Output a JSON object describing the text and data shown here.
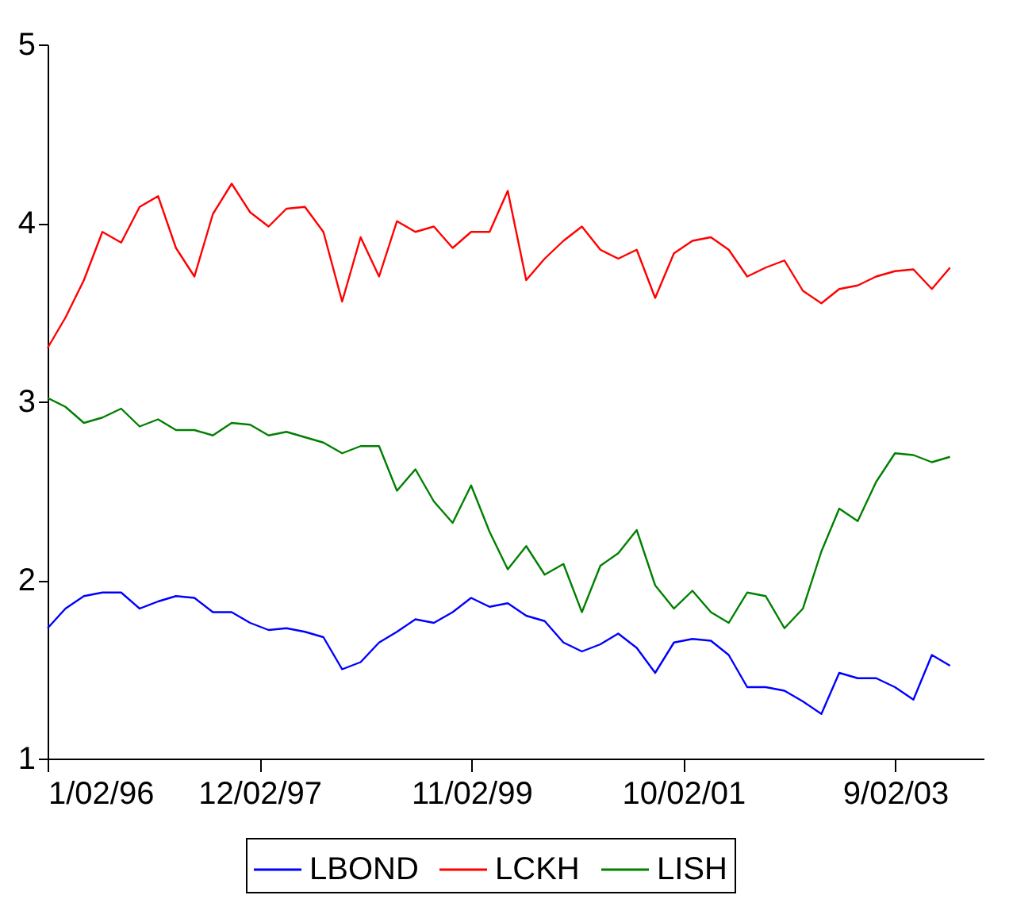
{
  "chart_data": {
    "type": "line",
    "x": [
      "1996-01-02",
      "1996-03",
      "1996-05",
      "1996-07",
      "1996-09",
      "1996-11",
      "1997-01",
      "1997-03",
      "1997-05",
      "1997-07",
      "1997-09",
      "1997-11",
      "1998-01",
      "1998-03",
      "1998-05",
      "1998-07",
      "1998-09",
      "1998-11",
      "1999-01",
      "1999-03",
      "1999-05",
      "1999-07",
      "1999-09",
      "1999-11",
      "2000-01",
      "2000-03",
      "2000-05",
      "2000-07",
      "2000-09",
      "2000-11",
      "2001-01",
      "2001-03",
      "2001-05",
      "2001-07",
      "2001-09",
      "2001-11",
      "2002-01",
      "2002-03",
      "2002-05",
      "2002-07",
      "2002-09",
      "2002-11",
      "2003-01",
      "2003-03",
      "2003-05",
      "2003-07",
      "2003-09",
      "2003-11",
      "2004-01",
      "2004-03"
    ],
    "series": [
      {
        "name": "LBOND",
        "color": "#0000ff",
        "values": [
          1.73,
          1.84,
          1.91,
          1.93,
          1.93,
          1.84,
          1.88,
          1.91,
          1.9,
          1.82,
          1.82,
          1.76,
          1.72,
          1.73,
          1.71,
          1.68,
          1.5,
          1.54,
          1.65,
          1.71,
          1.78,
          1.76,
          1.82,
          1.9,
          1.85,
          1.87,
          1.8,
          1.77,
          1.65,
          1.6,
          1.64,
          1.7,
          1.62,
          1.48,
          1.65,
          1.67,
          1.66,
          1.58,
          1.4,
          1.4,
          1.38,
          1.32,
          1.25,
          1.48,
          1.45,
          1.45,
          1.4,
          1.33,
          1.58,
          1.52
        ]
      },
      {
        "name": "LCKH",
        "color": "#ff0000",
        "values": [
          3.3,
          3.47,
          3.68,
          3.95,
          3.89,
          4.09,
          4.15,
          3.86,
          3.7,
          4.05,
          4.22,
          4.06,
          3.98,
          4.08,
          4.09,
          3.95,
          3.56,
          3.92,
          3.7,
          4.01,
          3.95,
          3.98,
          3.86,
          3.95,
          3.95,
          4.18,
          3.68,
          3.8,
          3.9,
          3.98,
          3.85,
          3.8,
          3.85,
          3.58,
          3.83,
          3.9,
          3.92,
          3.85,
          3.7,
          3.75,
          3.79,
          3.62,
          3.55,
          3.63,
          3.65,
          3.7,
          3.73,
          3.74,
          3.63,
          3.75
        ]
      },
      {
        "name": "LISH",
        "color": "#008000",
        "values": [
          3.02,
          2.97,
          2.88,
          2.91,
          2.96,
          2.86,
          2.9,
          2.84,
          2.84,
          2.81,
          2.88,
          2.87,
          2.81,
          2.83,
          2.8,
          2.77,
          2.71,
          2.75,
          2.75,
          2.5,
          2.62,
          2.44,
          2.32,
          2.53,
          2.27,
          2.06,
          2.19,
          2.03,
          2.09,
          1.82,
          2.08,
          2.15,
          2.28,
          1.97,
          1.84,
          1.94,
          1.82,
          1.76,
          1.93,
          1.91,
          1.73,
          1.84,
          2.16,
          2.4,
          2.33,
          2.55,
          2.71,
          2.7,
          2.66,
          2.69
        ]
      }
    ],
    "xlim": [
      "1996-01-02",
      "2004-06-20"
    ],
    "xticks": [
      {
        "value": "1996-01-02",
        "label": "1/02/96"
      },
      {
        "value": "1997-12-02",
        "label": "12/02/97"
      },
      {
        "value": "1999-11-02",
        "label": "11/02/99"
      },
      {
        "value": "2001-10-02",
        "label": "10/02/01"
      },
      {
        "value": "2003-09-02",
        "label": "9/02/03"
      }
    ],
    "ylim": [
      1,
      5
    ],
    "yticks": [
      1,
      2,
      3,
      4,
      5
    ],
    "grid": false,
    "legend": "bottom",
    "marker": "none",
    "line_style": "solid"
  }
}
